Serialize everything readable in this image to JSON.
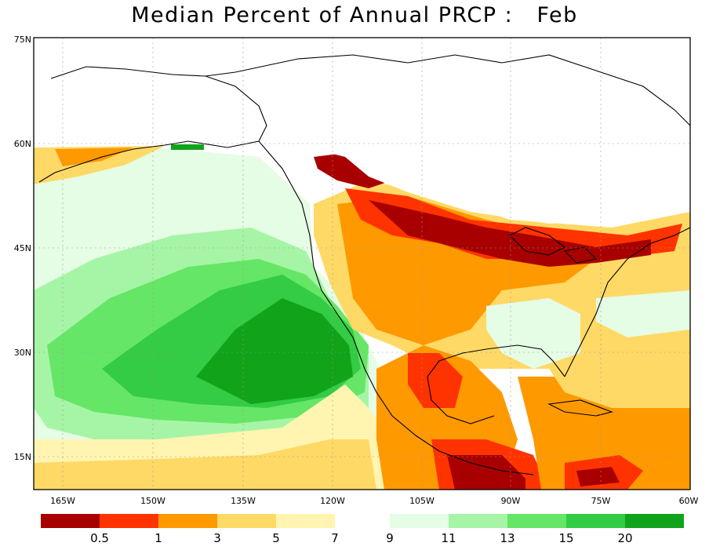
{
  "title": "Median Percent of Annual PRCP :   Feb",
  "lat_labels": [
    "75N",
    "60N",
    "45N",
    "30N",
    "15N"
  ],
  "lon_labels": [
    "165W",
    "150W",
    "135W",
    "120W",
    "105W",
    "90W",
    "75W",
    "60W"
  ],
  "legend": {
    "colors": [
      "#a80000",
      "#ff3300",
      "#ff9900",
      "#ffd966",
      "#fff5b0",
      "#e5fce5",
      "#a6f5a6",
      "#66e666",
      "#33cc44",
      "#11a31a"
    ],
    "labels": [
      "0.5",
      "1",
      "3",
      "5",
      "7",
      "9",
      "11",
      "13",
      "15",
      "20"
    ]
  },
  "palette": {
    "water_green": "#66e666",
    "land_orange": "#ff9900",
    "border": "#a0a0a0"
  }
}
